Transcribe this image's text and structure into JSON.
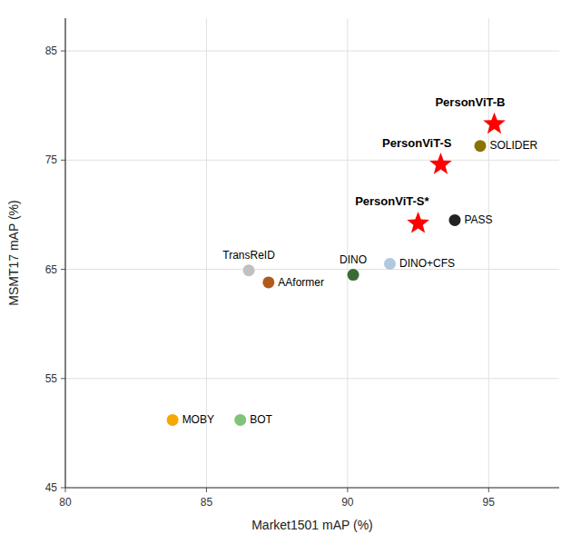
{
  "chart_data": {
    "type": "scatter",
    "xlabel": "Market1501 mAP (%)",
    "ylabel": "MSMT17 mAP (%)",
    "xlim": [
      80,
      97.5
    ],
    "ylim": [
      45,
      88
    ],
    "xticks": [
      80,
      85,
      90,
      95
    ],
    "yticks": [
      45,
      55,
      65,
      75,
      85
    ],
    "grid": true,
    "series": [
      {
        "marker": "star",
        "x": [
          95.2,
          93.3,
          92.5
        ],
        "values": [
          78.3,
          74.6,
          69.2
        ],
        "colors": [
          "#ff0000",
          "#ff0000",
          "#ff0000"
        ],
        "labels": [
          "PersonViT-B",
          "PersonViT-S",
          "PersonViT-S*"
        ]
      },
      {
        "marker": "circle",
        "x": [
          94.7,
          93.8,
          91.5,
          90.2,
          86.5,
          87.2,
          86.2,
          83.8
        ],
        "values": [
          76.3,
          69.5,
          65.5,
          64.5,
          64.9,
          63.8,
          51.2,
          51.2
        ],
        "colors": [
          "#8B7300",
          "#222222",
          "#b0c8e0",
          "#3a6b35",
          "#c0c0c0",
          "#b05a1a",
          "#80c47a",
          "#f5a800"
        ],
        "labels": [
          "SOLIDER",
          "PASS",
          "DINO+CFS",
          "DINO",
          "TransReID",
          "AAformer",
          "BOT",
          "MOBY"
        ]
      }
    ]
  }
}
